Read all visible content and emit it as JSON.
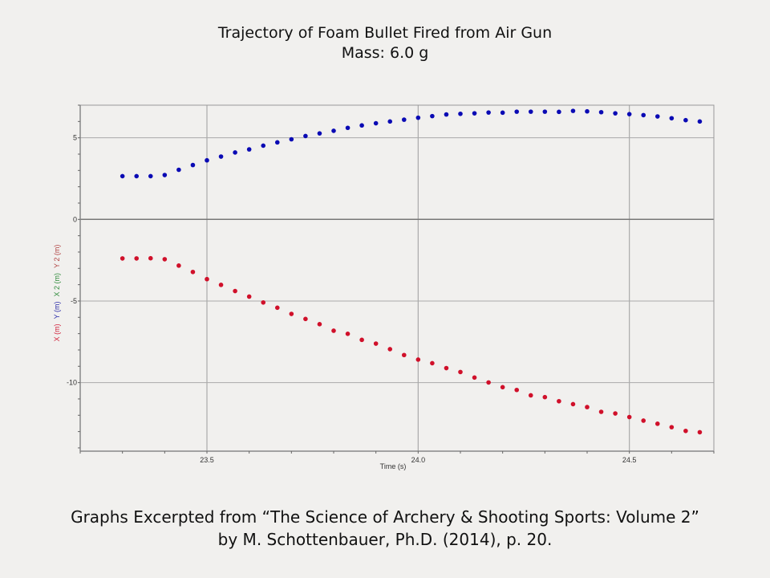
{
  "chart_data": {
    "type": "scatter",
    "title": "Trajectory of Foam Bullet Fired from Air Gun",
    "subtitle": "Mass: 6.0 g",
    "xlabel": "Time (s)",
    "ylabel_parts": [
      {
        "text": "X (m)",
        "color": "#d0203a"
      },
      {
        "text": "Y (m)",
        "color": "#2a2aa8"
      },
      {
        "text": "X 2 (m)",
        "color": "#2e8b3a"
      },
      {
        "text": "Y 2 (m)",
        "color": "#b04040"
      }
    ],
    "xlim": [
      23.2,
      24.7
    ],
    "ylim": [
      -14.2,
      7.0
    ],
    "xticks": [
      23.5,
      24.0,
      24.5
    ],
    "xtick_labels": [
      "23.5",
      "24.0",
      "24.5"
    ],
    "yticks": [
      5,
      0,
      -5,
      -10
    ],
    "ytick_labels": [
      "5",
      "0",
      "-5",
      "-10"
    ],
    "grid": true,
    "x_start": 23.3,
    "x_step": 0.0333,
    "series": [
      {
        "name": "Y (m)",
        "color": "#0a0ab4",
        "values": [
          2.65,
          2.65,
          2.65,
          2.72,
          3.04,
          3.33,
          3.62,
          3.85,
          4.1,
          4.29,
          4.52,
          4.72,
          4.91,
          5.11,
          5.27,
          5.43,
          5.61,
          5.76,
          5.89,
          6.0,
          6.11,
          6.23,
          6.33,
          6.43,
          6.47,
          6.5,
          6.55,
          6.54,
          6.6,
          6.6,
          6.6,
          6.59,
          6.65,
          6.62,
          6.57,
          6.5,
          6.45,
          6.39,
          6.31,
          6.2,
          6.08,
          6.0
        ]
      },
      {
        "name": "X (m)",
        "color": "#d0102a",
        "values": [
          -2.39,
          -2.39,
          -2.38,
          -2.44,
          -2.83,
          -3.22,
          -3.66,
          -4.01,
          -4.39,
          -4.73,
          -5.09,
          -5.41,
          -5.79,
          -6.1,
          -6.42,
          -6.82,
          -7.01,
          -7.38,
          -7.61,
          -7.95,
          -8.31,
          -8.59,
          -8.81,
          -9.11,
          -9.35,
          -9.69,
          -9.99,
          -10.28,
          -10.45,
          -10.78,
          -10.89,
          -11.14,
          -11.32,
          -11.5,
          -11.79,
          -11.89,
          -12.11,
          -12.33,
          -12.52,
          -12.73,
          -12.96,
          -13.04
        ]
      }
    ]
  },
  "caption": {
    "line1": "Graphs Excerpted from “The Science of Archery & Shooting Sports: Volume 2”",
    "line2": "by M. Schottenbauer, Ph.D. (2014), p. 20."
  }
}
